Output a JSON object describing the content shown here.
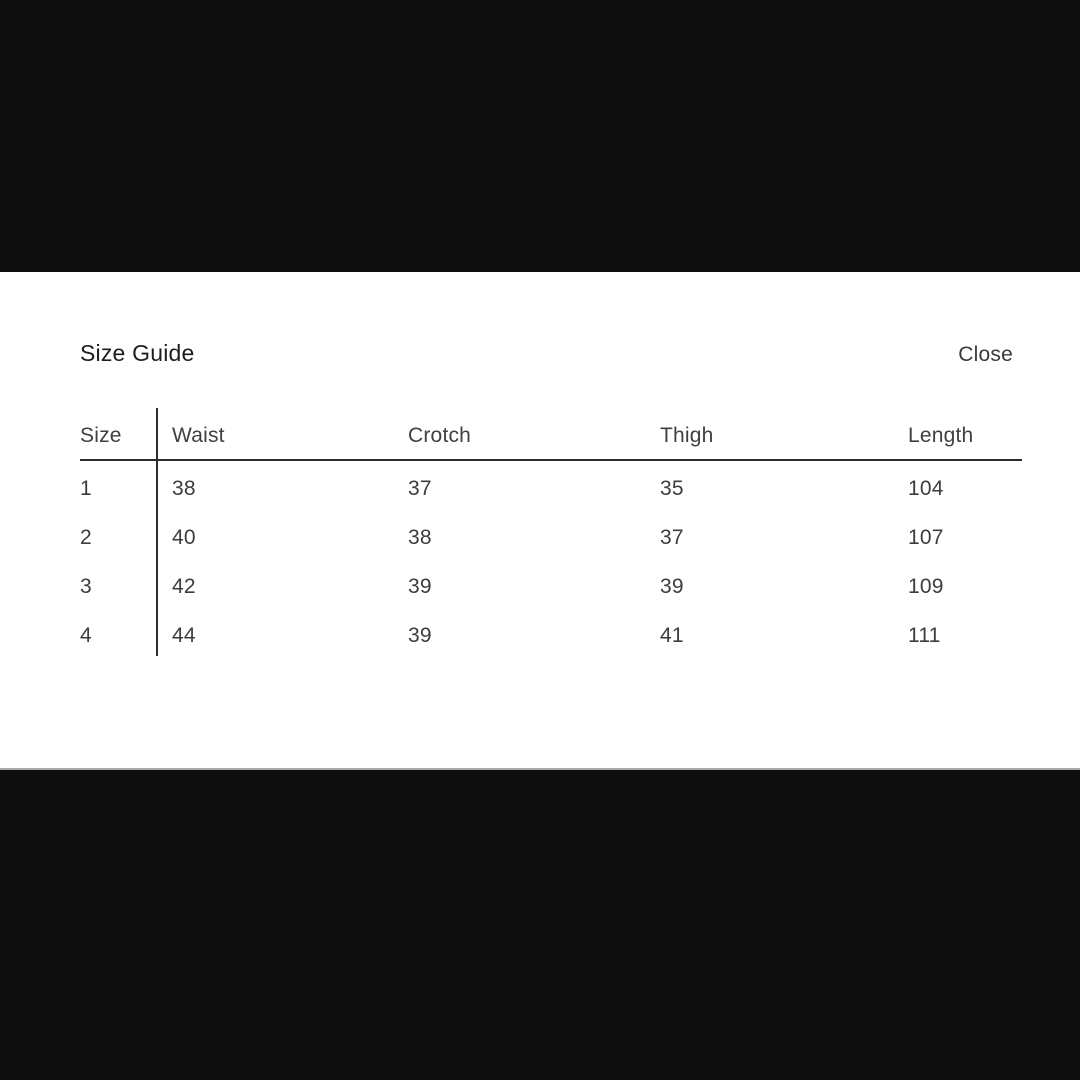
{
  "page": {
    "background_color": "#0e0e0e"
  },
  "modal": {
    "title": "Size Guide",
    "close_label": "Close",
    "background_color": "#ffffff",
    "rule_color": "#2c2c2c"
  },
  "table": {
    "columns": [
      "Size",
      "Waist",
      "Crotch",
      "Thigh",
      "Length"
    ],
    "rows": [
      [
        "1",
        "38",
        "37",
        "35",
        "104"
      ],
      [
        "2",
        "40",
        "38",
        "37",
        "107"
      ],
      [
        "3",
        "42",
        "39",
        "39",
        "109"
      ],
      [
        "4",
        "44",
        "39",
        "41",
        "111"
      ]
    ]
  }
}
